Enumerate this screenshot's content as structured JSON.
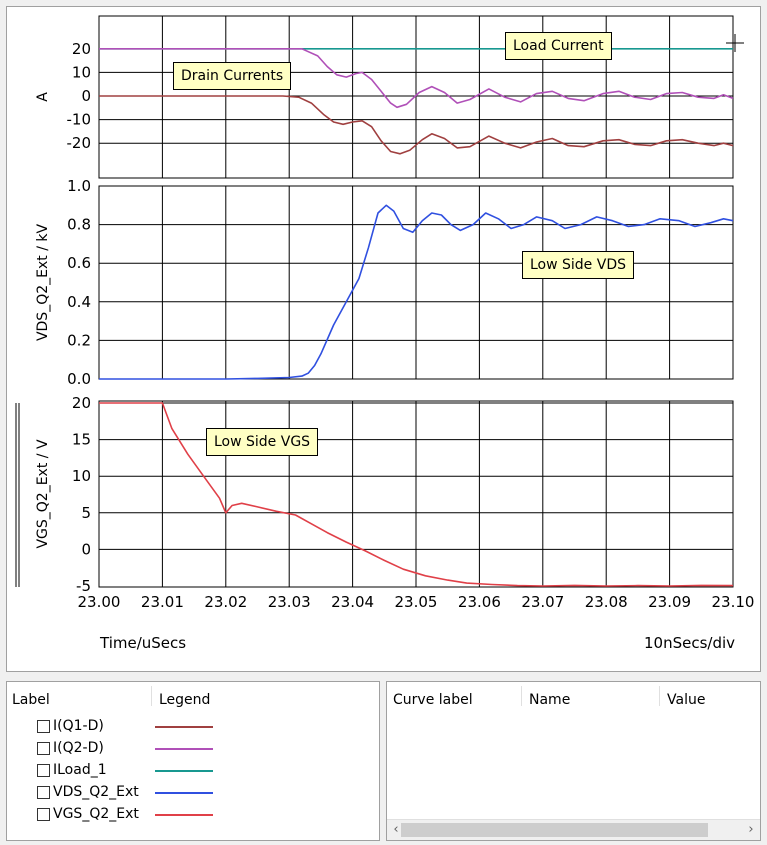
{
  "chart_data": [
    {
      "type": "line",
      "ylabel": "A",
      "ylim": [
        -25,
        25
      ],
      "yticks": [
        20,
        10,
        0,
        -10,
        -20
      ],
      "xlim": [
        23.0,
        23.1
      ],
      "series": [
        {
          "name": "ILoad_1",
          "color": "#189890",
          "points": [
            [
              23.0,
              20
            ],
            [
              23.1,
              20
            ]
          ]
        },
        {
          "name": "I(Q2-D)",
          "color": "#b050b8",
          "points": [
            [
              23.0,
              20
            ],
            [
              23.029,
              20
            ],
            [
              23.032,
              20
            ],
            [
              23.0345,
              17
            ],
            [
              23.036,
              12.5
            ],
            [
              23.0375,
              9
            ],
            [
              23.039,
              8
            ],
            [
              23.0405,
              9.5
            ],
            [
              23.0415,
              10
            ],
            [
              23.043,
              7
            ],
            [
              23.0445,
              2
            ],
            [
              23.046,
              -3
            ],
            [
              23.047,
              -4.8
            ],
            [
              23.0485,
              -3.5
            ],
            [
              23.0505,
              1.5
            ],
            [
              23.0525,
              4
            ],
            [
              23.0545,
              1.5
            ],
            [
              23.0565,
              -3
            ],
            [
              23.0585,
              -1.5
            ],
            [
              23.0615,
              3
            ],
            [
              23.064,
              -0.5
            ],
            [
              23.0665,
              -2.5
            ],
            [
              23.069,
              1
            ],
            [
              23.0715,
              2
            ],
            [
              23.074,
              -1
            ],
            [
              23.0765,
              -2
            ],
            [
              23.0795,
              1
            ],
            [
              23.082,
              2
            ],
            [
              23.0845,
              -0.5
            ],
            [
              23.087,
              -1.5
            ],
            [
              23.0895,
              1
            ],
            [
              23.092,
              1.5
            ],
            [
              23.0945,
              -0.5
            ],
            [
              23.097,
              -1
            ],
            [
              23.0985,
              0.5
            ],
            [
              23.1,
              -1
            ]
          ]
        },
        {
          "name": "I(Q1-D)",
          "color": "#a04040",
          "points": [
            [
              23.0,
              0
            ],
            [
              23.029,
              0
            ],
            [
              23.0315,
              -0.5
            ],
            [
              23.0335,
              -3
            ],
            [
              23.0355,
              -8
            ],
            [
              23.037,
              -11
            ],
            [
              23.0385,
              -12
            ],
            [
              23.04,
              -11
            ],
            [
              23.0415,
              -10.5
            ],
            [
              23.043,
              -13
            ],
            [
              23.0445,
              -19
            ],
            [
              23.046,
              -23.5
            ],
            [
              23.0475,
              -24.5
            ],
            [
              23.049,
              -23
            ],
            [
              23.051,
              -18.5
            ],
            [
              23.0525,
              -16
            ],
            [
              23.0545,
              -18
            ],
            [
              23.0565,
              -22
            ],
            [
              23.0585,
              -21.5
            ],
            [
              23.0615,
              -17
            ],
            [
              23.064,
              -20
            ],
            [
              23.0665,
              -22
            ],
            [
              23.069,
              -19.5
            ],
            [
              23.0715,
              -18
            ],
            [
              23.074,
              -21
            ],
            [
              23.0765,
              -21.5
            ],
            [
              23.0795,
              -19
            ],
            [
              23.082,
              -18.5
            ],
            [
              23.0845,
              -20.5
            ],
            [
              23.087,
              -21
            ],
            [
              23.0895,
              -19
            ],
            [
              23.092,
              -18.5
            ],
            [
              23.0945,
              -20
            ],
            [
              23.097,
              -21
            ],
            [
              23.0985,
              -20
            ],
            [
              23.1,
              -21
            ]
          ]
        }
      ]
    },
    {
      "type": "line",
      "ylabel": "VDS_Q2_Ext / kV",
      "ylim": [
        0,
        1
      ],
      "yticks": [
        1.0,
        0.8,
        0.6,
        0.4,
        0.2,
        0.0
      ],
      "yticklabels": [
        "1.0",
        "0.8",
        "0.6",
        "0.4",
        "0.2",
        "0.0"
      ],
      "xlim": [
        23.0,
        23.1
      ],
      "series": [
        {
          "name": "VDS_Q2_Ext",
          "color": "#3050e0",
          "points": [
            [
              23.0,
              0
            ],
            [
              23.02,
              0
            ],
            [
              23.025,
              0.003
            ],
            [
              23.03,
              0.008
            ],
            [
              23.032,
              0.015
            ],
            [
              23.033,
              0.03
            ],
            [
              23.034,
              0.07
            ],
            [
              23.035,
              0.13
            ],
            [
              23.037,
              0.28
            ],
            [
              23.039,
              0.4
            ],
            [
              23.041,
              0.52
            ],
            [
              23.0425,
              0.68
            ],
            [
              23.044,
              0.86
            ],
            [
              23.0453,
              0.9
            ],
            [
              23.0465,
              0.87
            ],
            [
              23.048,
              0.78
            ],
            [
              23.0495,
              0.76
            ],
            [
              23.051,
              0.82
            ],
            [
              23.0525,
              0.86
            ],
            [
              23.054,
              0.85
            ],
            [
              23.0555,
              0.8
            ],
            [
              23.057,
              0.77
            ],
            [
              23.059,
              0.8
            ],
            [
              23.061,
              0.86
            ],
            [
              23.063,
              0.83
            ],
            [
              23.065,
              0.78
            ],
            [
              23.067,
              0.8
            ],
            [
              23.069,
              0.84
            ],
            [
              23.0715,
              0.82
            ],
            [
              23.0735,
              0.78
            ],
            [
              23.076,
              0.8
            ],
            [
              23.0785,
              0.84
            ],
            [
              23.081,
              0.82
            ],
            [
              23.0835,
              0.79
            ],
            [
              23.086,
              0.8
            ],
            [
              23.0885,
              0.83
            ],
            [
              23.0915,
              0.82
            ],
            [
              23.094,
              0.79
            ],
            [
              23.0965,
              0.81
            ],
            [
              23.0985,
              0.83
            ],
            [
              23.1,
              0.82
            ]
          ]
        }
      ]
    },
    {
      "type": "line",
      "ylabel": "VGS_Q2_Ext / V",
      "ylim": [
        -5,
        20
      ],
      "yticks": [
        20,
        15,
        10,
        5,
        0,
        -5
      ],
      "xlim": [
        23.0,
        23.1
      ],
      "xlabel": "Time/uSecs",
      "xticks": [
        "23.00",
        "23.01",
        "23.02",
        "23.03",
        "23.04",
        "23.05",
        "23.06",
        "23.07",
        "23.08",
        "23.09",
        "23.10"
      ],
      "series": [
        {
          "name": "VGS_Q2_Ext",
          "color": "#e04048",
          "points": [
            [
              23.0,
              20
            ],
            [
              23.01,
              20
            ],
            [
              23.0115,
              16.5
            ],
            [
              23.014,
              13
            ],
            [
              23.0165,
              10
            ],
            [
              23.019,
              7
            ],
            [
              23.02,
              5
            ],
            [
              23.021,
              6
            ],
            [
              23.0225,
              6.3
            ],
            [
              23.025,
              5.8
            ],
            [
              23.028,
              5.2
            ],
            [
              23.031,
              4.7
            ],
            [
              23.0335,
              3.5
            ],
            [
              23.036,
              2.3
            ],
            [
              23.039,
              1
            ],
            [
              23.042,
              -0.2
            ],
            [
              23.045,
              -1.5
            ],
            [
              23.048,
              -2.7
            ],
            [
              23.0515,
              -3.6
            ],
            [
              23.055,
              -4.2
            ],
            [
              23.058,
              -4.6
            ],
            [
              23.062,
              -4.8
            ],
            [
              23.066,
              -4.95
            ],
            [
              23.07,
              -5
            ],
            [
              23.075,
              -4.92
            ],
            [
              23.08,
              -5
            ],
            [
              23.085,
              -4.95
            ],
            [
              23.09,
              -5
            ],
            [
              23.095,
              -4.92
            ],
            [
              23.1,
              -4.95
            ]
          ]
        }
      ]
    }
  ],
  "annotations": {
    "load_current": "Load Current",
    "drain_currents": "Drain Currents",
    "low_side_vds": "Low Side VDS",
    "low_side_vgs": "Low Side VGS"
  },
  "footer": {
    "time_label": "Time/uSecs",
    "scale_label": "10nSecs/div"
  },
  "legend_panel": {
    "col_label": "Label",
    "col_legend": "Legend",
    "items": [
      {
        "label": "I(Q1-D)",
        "color": "#a04040"
      },
      {
        "label": "I(Q2-D)",
        "color": "#b050b8"
      },
      {
        "label": "ILoad_1",
        "color": "#189890"
      },
      {
        "label": "VDS_Q2_Ext",
        "color": "#3050e0"
      },
      {
        "label": "VGS_Q2_Ext",
        "color": "#e04048"
      }
    ]
  },
  "cursor_panel": {
    "col_curve_label": "Curve label",
    "col_name": "Name",
    "col_value": "Value"
  }
}
